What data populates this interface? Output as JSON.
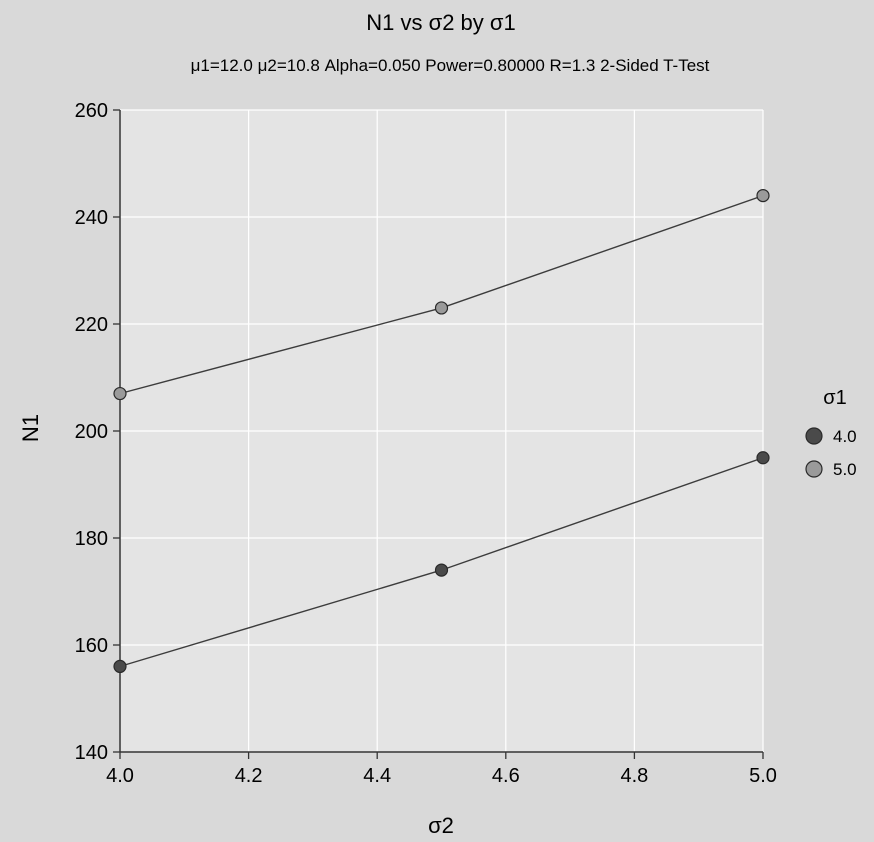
{
  "colors": {
    "background": "#d9d9d9",
    "plot_background": "#e4e4e4",
    "grid": "#ffffff",
    "axis": "#333333",
    "line": "#3c3c3c",
    "series_4_0": "#4a4a4a",
    "series_5_0": "#9a9a9a"
  },
  "chart_data": {
    "type": "line",
    "title": "N1 vs σ2 by σ1",
    "subtitle": "μ1=12.0 μ2=10.8 Alpha=0.050 Power=0.80000 R=1.3 2-Sided T-Test",
    "xlabel": "σ2",
    "ylabel": "N1",
    "xlim": [
      4.0,
      5.0
    ],
    "ylim": [
      140,
      260
    ],
    "x_ticks": [
      "4.0",
      "4.2",
      "4.4",
      "4.6",
      "4.8",
      "5.0"
    ],
    "y_ticks": [
      "140",
      "160",
      "180",
      "200",
      "220",
      "240",
      "260"
    ],
    "grid": true,
    "legend": {
      "title": "σ1",
      "position": "right",
      "entries": [
        "4.0",
        "5.0"
      ]
    },
    "series": [
      {
        "name": "4.0",
        "x": [
          4.0,
          4.5,
          5.0
        ],
        "y": [
          156,
          174,
          195
        ]
      },
      {
        "name": "5.0",
        "x": [
          4.0,
          4.5,
          5.0
        ],
        "y": [
          207,
          223,
          244
        ]
      }
    ]
  }
}
